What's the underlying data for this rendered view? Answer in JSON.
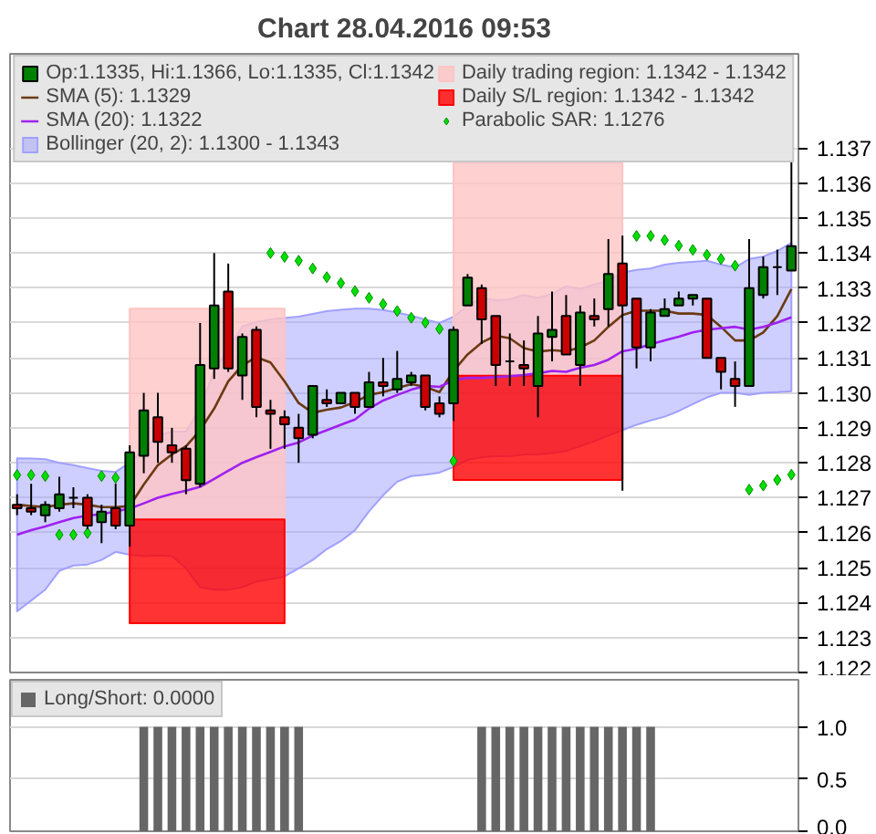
{
  "chart_data": [
    {
      "type": "candlestick",
      "title": "Chart 28.04.2016 09:53",
      "categories": [
        null,
        null,
        null,
        null,
        null,
        null,
        null,
        null,
        null,
        null,
        null,
        null,
        null,
        null,
        null,
        null,
        null,
        null,
        null,
        null,
        null,
        null,
        null,
        null,
        null,
        null,
        null,
        null,
        null,
        null,
        null,
        null,
        null,
        null,
        null,
        null,
        null,
        null,
        null,
        null,
        null,
        null,
        null,
        null,
        null,
        null,
        null,
        null,
        null,
        null,
        null,
        null,
        null,
        null,
        null,
        null
      ],
      "series": [
        {
          "type": "candlestick",
          "name": "Op:1.1335, Hi:1.1366, Lo:1.1335, Cl:1.1342",
          "color": "#008000",
          "ohlc": [
            [
              1.1268,
              1.1271,
              1.1265,
              1.1267
            ],
            [
              1.1267,
              1.1274,
              1.1265,
              1.1266
            ],
            [
              1.1265,
              1.1269,
              1.1263,
              1.1268
            ],
            [
              1.1267,
              1.1276,
              1.1266,
              1.1271
            ],
            [
              1.127,
              1.1273,
              1.1267,
              1.127
            ],
            [
              1.127,
              1.1271,
              1.1261,
              1.1262
            ],
            [
              1.1263,
              1.1268,
              1.1257,
              1.1266
            ],
            [
              1.1267,
              1.1274,
              1.1261,
              1.1262
            ],
            [
              1.1262,
              1.1285,
              1.1256,
              1.1283
            ],
            [
              1.1282,
              1.13,
              1.1277,
              1.1295
            ],
            [
              1.1293,
              1.13,
              1.128,
              1.1286
            ],
            [
              1.1285,
              1.129,
              1.128,
              1.1283
            ],
            [
              1.1284,
              1.1285,
              1.1271,
              1.1275
            ],
            [
              1.1274,
              1.132,
              1.1273,
              1.1308
            ],
            [
              1.1307,
              1.134,
              1.1304,
              1.1325
            ],
            [
              1.1329,
              1.1337,
              1.1306,
              1.1307
            ],
            [
              1.1305,
              1.1317,
              1.1298,
              1.1316
            ],
            [
              1.1318,
              1.1319,
              1.1293,
              1.1296
            ],
            [
              1.1295,
              1.1298,
              1.1284,
              1.1294
            ],
            [
              1.1293,
              1.1295,
              1.1284,
              1.1291
            ],
            [
              1.129,
              1.1294,
              1.128,
              1.1287
            ],
            [
              1.1288,
              1.1302,
              1.1287,
              1.1302
            ],
            [
              1.1298,
              1.1301,
              1.1296,
              1.1297
            ],
            [
              1.1297,
              1.13,
              1.1297,
              1.13
            ],
            [
              1.13,
              1.13,
              1.1294,
              1.1296
            ],
            [
              1.1296,
              1.1306,
              1.1296,
              1.1303
            ],
            [
              1.1303,
              1.131,
              1.1299,
              1.1302
            ],
            [
              1.1301,
              1.1312,
              1.13,
              1.1304
            ],
            [
              1.1303,
              1.1306,
              1.1302,
              1.1305
            ],
            [
              1.1305,
              1.1305,
              1.1295,
              1.1296
            ],
            [
              1.1297,
              1.1299,
              1.1293,
              1.1294
            ],
            [
              1.1297,
              1.1319,
              1.1292,
              1.1318
            ],
            [
              1.1325,
              1.1334,
              1.1325,
              1.1333
            ],
            [
              1.133,
              1.1331,
              1.1314,
              1.1321
            ],
            [
              1.1322,
              1.1322,
              1.1302,
              1.1308
            ],
            [
              1.1309,
              1.1317,
              1.1302,
              1.1309
            ],
            [
              1.1308,
              1.1315,
              1.1302,
              1.1307
            ],
            [
              1.1302,
              1.1322,
              1.1293,
              1.1317
            ],
            [
              1.1316,
              1.1329,
              1.1309,
              1.1318
            ],
            [
              1.1322,
              1.1328,
              1.1311,
              1.1311
            ],
            [
              1.1308,
              1.1325,
              1.1302,
              1.1323
            ],
            [
              1.1322,
              1.1327,
              1.1319,
              1.1321
            ],
            [
              1.1324,
              1.1344,
              1.1319,
              1.1334
            ],
            [
              1.1337,
              1.1345,
              1.1272,
              1.1325
            ],
            [
              1.1327,
              1.1327,
              1.1307,
              1.1313
            ],
            [
              1.1313,
              1.1324,
              1.1309,
              1.1323
            ],
            [
              1.1322,
              1.1327,
              1.1322,
              1.1324
            ],
            [
              1.1325,
              1.1329,
              1.1325,
              1.1327
            ],
            [
              1.1327,
              1.1328,
              1.1325,
              1.1328
            ],
            [
              1.1327,
              1.1327,
              1.131,
              1.131
            ],
            [
              1.131,
              1.131,
              1.1301,
              1.1306
            ],
            [
              1.1304,
              1.1309,
              1.1296,
              1.1302
            ],
            [
              1.1302,
              1.1344,
              1.1302,
              1.133
            ],
            [
              1.1328,
              1.1339,
              1.1327,
              1.1336
            ],
            [
              1.1336,
              1.1341,
              1.1328,
              1.1336
            ],
            [
              1.1335,
              1.1366,
              1.1335,
              1.1342
            ]
          ],
          "colors": [
            "#cc0000",
            "#cc0000",
            "#008000",
            "#008000",
            "#000000",
            "#cc0000",
            "#008000",
            "#cc0000",
            "#008000",
            "#008000",
            "#cc0000",
            "#cc0000",
            "#cc0000",
            "#008000",
            "#008000",
            "#cc0000",
            "#008000",
            "#cc0000",
            "#cc0000",
            "#cc0000",
            "#cc0000",
            "#008000",
            "#cc0000",
            "#008000",
            "#cc0000",
            "#008000",
            "#cc0000",
            "#008000",
            "#008000",
            "#cc0000",
            "#cc0000",
            "#008000",
            "#008000",
            "#cc0000",
            "#cc0000",
            "#000000",
            "#cc0000",
            "#008000",
            "#008000",
            "#cc0000",
            "#008000",
            "#cc0000",
            "#008000",
            "#cc0000",
            "#cc0000",
            "#008000",
            "#008000",
            "#008000",
            "#008000",
            "#cc0000",
            "#cc0000",
            "#cc0000",
            "#008000",
            "#008000",
            "#000000",
            "#008000"
          ]
        },
        {
          "type": "line",
          "name": "SMA (5): 1.1329",
          "color": "#6b3a12",
          "values": [
            1.1268,
            1.12676,
            1.12673,
            1.1268,
            1.12684,
            1.1268,
            1.12673,
            1.12673,
            1.12676,
            1.12738,
            1.12793,
            1.12824,
            1.12847,
            1.12893,
            1.12955,
            1.13033,
            1.13079,
            1.13102,
            1.13087,
            1.13033,
            1.12971,
            1.12943,
            1.12952,
            1.12958,
            1.12974,
            1.12994,
            1.13002,
            1.13014,
            1.13025,
            1.13017,
            1.13002,
            1.13063,
            1.1311,
            1.13144,
            1.13164,
            1.13156,
            1.13128,
            1.13118,
            1.13122,
            1.13119,
            1.1313,
            1.1315,
            1.13189,
            1.13223,
            1.13235,
            1.13235,
            1.13235,
            1.13227,
            1.13227,
            1.13223,
            1.13189,
            1.1315,
            1.1315,
            1.13173,
            1.1322,
            1.13297
          ]
        },
        {
          "type": "line",
          "name": "SMA (20): 1.1322",
          "color": "#a020f0",
          "values": [
            1.12594,
            1.12607,
            1.12618,
            1.1263,
            1.12642,
            1.12649,
            1.12653,
            1.12661,
            1.12669,
            1.12684,
            1.127,
            1.12711,
            1.1272,
            1.12731,
            1.12754,
            1.12777,
            1.128,
            1.12816,
            1.12831,
            1.12847,
            1.12858,
            1.12878,
            1.12893,
            1.12909,
            1.12924,
            1.12955,
            1.12978,
            1.12994,
            1.13009,
            1.1302,
            1.13017,
            1.13036,
            1.13043,
            1.13043,
            1.13045,
            1.13048,
            1.13051,
            1.13056,
            1.13063,
            1.1306,
            1.13072,
            1.1308,
            1.13095,
            1.13119,
            1.13126,
            1.13139,
            1.1315,
            1.13161,
            1.13173,
            1.13181,
            1.13185,
            1.13189,
            1.13181,
            1.13189,
            1.13201,
            1.13216
          ]
        },
        {
          "type": "line",
          "name": "Bollinger (20, 2): 1.1300 - 1.1343",
          "color": "#a0a0ff",
          "values": [
            null,
            null,
            null,
            null,
            null,
            null,
            null,
            null,
            null,
            null,
            null,
            null,
            null,
            null,
            null,
            null,
            null,
            null,
            null,
            null,
            null,
            null,
            null,
            null,
            null,
            null,
            null,
            null,
            null,
            null,
            null,
            null,
            null,
            null,
            null,
            null,
            null,
            null,
            null,
            null,
            null,
            null,
            null,
            null,
            null,
            null,
            null,
            null,
            null,
            null,
            null,
            null,
            null,
            null,
            null,
            null
          ],
          "upper": [
            1.12813,
            1.12812,
            1.1281,
            1.128,
            1.12793,
            1.12785,
            1.12777,
            1.12774,
            1.128,
            1.12839,
            1.12878,
            1.12889,
            1.1289,
            1.12955,
            1.13063,
            1.13125,
            1.1319,
            1.13203,
            1.1321,
            1.13214,
            1.13218,
            1.13226,
            1.13234,
            1.13238,
            1.13241,
            1.13241,
            1.13237,
            1.1323,
            1.13221,
            1.1321,
            1.132,
            1.13218,
            1.13249,
            1.13272,
            1.13265,
            1.13268,
            1.1328,
            1.13272,
            1.13283,
            1.13305,
            1.13297,
            1.1331,
            1.1332,
            1.13344,
            1.13352,
            1.13356,
            1.13367,
            1.13372,
            1.13375,
            1.13378,
            1.13367,
            1.13359,
            1.13383,
            1.1339,
            1.13406,
            1.13429
          ],
          "lower": [
            1.12375,
            1.12406,
            1.12437,
            1.12491,
            1.12506,
            1.12509,
            1.12522,
            1.12545,
            1.12537,
            1.12533,
            1.12535,
            1.12533,
            1.12498,
            1.12444,
            1.12437,
            1.12437,
            1.12444,
            1.1246,
            1.12467,
            1.12475,
            1.12498,
            1.12522,
            1.12553,
            1.12576,
            1.12607,
            1.12661,
            1.12707,
            1.12746,
            1.12762,
            1.12766,
            1.12772,
            1.12788,
            1.12808,
            1.12816,
            1.12819,
            1.12819,
            1.12824,
            1.12824,
            1.12828,
            1.12834,
            1.12847,
            1.12862,
            1.12878,
            1.12893,
            1.12909,
            1.12921,
            1.12932,
            1.12948,
            1.12968,
            1.12987,
            1.13,
            1.13,
            1.12994,
            1.13,
            1.13002,
            1.13005
          ]
        },
        {
          "type": "line",
          "name": "Daily trading region: 1.1342 - 1.1342",
          "color": "#ffc4c4",
          "values": [
            null,
            null,
            null,
            null,
            null,
            null,
            null,
            null,
            null,
            null,
            null,
            null,
            null,
            null,
            null,
            null,
            null,
            null,
            null,
            null,
            null,
            null,
            null,
            null,
            null,
            null,
            null,
            null,
            null,
            null,
            null,
            null,
            null,
            null,
            null,
            null,
            null,
            null,
            null,
            null,
            null,
            null,
            null,
            null,
            null,
            null,
            null,
            null,
            null,
            null,
            null,
            null,
            null,
            null,
            null,
            null
          ],
          "upper": [
            null,
            null,
            null,
            null,
            null,
            null,
            null,
            null,
            1.13241,
            1.13241,
            1.13241,
            1.13241,
            1.13241,
            1.13241,
            1.13241,
            1.13241,
            1.13241,
            1.13241,
            1.13241,
            1.13241,
            null,
            null,
            null,
            null,
            null,
            null,
            null,
            null,
            null,
            null,
            null,
            1.13659,
            1.13659,
            1.13659,
            1.13659,
            1.13659,
            1.13659,
            1.13659,
            1.13659,
            1.13659,
            1.13659,
            1.13659,
            1.13659,
            1.13659,
            null,
            null,
            null,
            null,
            null,
            null,
            null,
            null,
            null,
            null,
            null,
            null
          ],
          "lower": [
            null,
            null,
            null,
            null,
            null,
            null,
            null,
            null,
            1.12638,
            1.12638,
            1.12638,
            1.12638,
            1.12638,
            1.12638,
            1.12638,
            1.12638,
            1.12638,
            1.12638,
            1.12638,
            1.12638,
            null,
            null,
            null,
            null,
            null,
            null,
            null,
            null,
            null,
            null,
            null,
            1.13049,
            1.13049,
            1.13049,
            1.13049,
            1.13049,
            1.13049,
            1.13049,
            1.13049,
            1.13049,
            1.13049,
            1.13049,
            1.13049,
            1.13049,
            null,
            null,
            null,
            null,
            null,
            null,
            null,
            null,
            null,
            null,
            null,
            null
          ]
        },
        {
          "type": "line",
          "name": "Daily S/L region: 1.1342 - 1.1342",
          "color": "#ff0000",
          "values": [
            null,
            null,
            null,
            null,
            null,
            null,
            null,
            null,
            null,
            null,
            null,
            null,
            null,
            null,
            null,
            null,
            null,
            null,
            null,
            null,
            null,
            null,
            null,
            null,
            null,
            null,
            null,
            null,
            null,
            null,
            null,
            null,
            null,
            null,
            null,
            null,
            null,
            null,
            null,
            null,
            null,
            null,
            null,
            null,
            null,
            null,
            null,
            null,
            null,
            null,
            null,
            null,
            null,
            null,
            null,
            null
          ],
          "upper": [
            null,
            null,
            null,
            null,
            null,
            null,
            null,
            null,
            1.12638,
            1.12638,
            1.12638,
            1.12638,
            1.12638,
            1.12638,
            1.12638,
            1.12638,
            1.12638,
            1.12638,
            1.12638,
            1.12638,
            null,
            null,
            null,
            null,
            null,
            null,
            null,
            null,
            null,
            null,
            null,
            1.13049,
            1.13049,
            1.13049,
            1.13049,
            1.13049,
            1.13049,
            1.13049,
            1.13049,
            1.13049,
            1.13049,
            1.13049,
            1.13049,
            1.13049,
            null,
            null,
            null,
            null,
            null,
            null,
            null,
            null,
            null,
            null,
            null,
            null
          ],
          "lower": [
            null,
            null,
            null,
            null,
            null,
            null,
            null,
            null,
            1.12341,
            1.12341,
            1.12341,
            1.12341,
            1.12341,
            1.12341,
            1.12341,
            1.12341,
            1.12341,
            1.12341,
            1.12341,
            1.12341,
            null,
            null,
            null,
            null,
            null,
            null,
            null,
            null,
            null,
            null,
            null,
            1.12751,
            1.12751,
            1.12751,
            1.12751,
            1.12751,
            1.12751,
            1.12751,
            1.12751,
            1.12751,
            1.12751,
            1.12751,
            1.12751,
            1.12751,
            null,
            null,
            null,
            null,
            null,
            null,
            null,
            null,
            null,
            null,
            null,
            null
          ]
        },
        {
          "type": "scatter",
          "name": "Parabolic SAR: 1.1276",
          "color": "#00e000",
          "marker": "diamond",
          "values": [
            1.12765,
            1.12765,
            1.12762,
            1.12594,
            1.12594,
            1.12599,
            1.12762,
            1.12757,
            null,
            null,
            null,
            null,
            null,
            null,
            null,
            null,
            null,
            null,
            1.134,
            1.13389,
            1.13378,
            1.13356,
            1.13331,
            1.13314,
            1.13291,
            1.13272,
            1.13254,
            1.13234,
            1.13215,
            1.13201,
            1.13183,
            1.12805,
            null,
            null,
            null,
            null,
            null,
            null,
            null,
            null,
            null,
            null,
            null,
            null,
            1.13449,
            1.13449,
            1.13437,
            1.13421,
            1.13409,
            1.13395,
            1.13383,
            1.13364,
            1.12723,
            1.12735,
            1.12751,
            1.12766
          ]
        }
      ],
      "ylim": [
        1.122,
        1.1397
      ],
      "yticks": [
        1.122,
        1.123,
        1.124,
        1.125,
        1.126,
        1.127,
        1.128,
        1.129,
        {
          "value": 1.13,
          "label": "1.130"
        },
        1.131,
        1.132,
        1.133,
        1.134,
        1.135,
        1.136,
        1.137
      ],
      "grid": "y",
      "legend": "top",
      "tick_labels": "y"
    },
    {
      "type": "bar",
      "categories": [
        null,
        null,
        null,
        null,
        null,
        null,
        null,
        null,
        null,
        null,
        null,
        null,
        null,
        null,
        null,
        null,
        null,
        null,
        null,
        null,
        null,
        null,
        null,
        null,
        null,
        null,
        null,
        null,
        null,
        null,
        null,
        null,
        null,
        null,
        null,
        null,
        null,
        null,
        null,
        null,
        null,
        null,
        null,
        null,
        null,
        null,
        null,
        null,
        null,
        null,
        null,
        null,
        null,
        null,
        null,
        null
      ],
      "series": [
        {
          "name": "Long/Short: 0.0000",
          "color": "#666666",
          "values": [
            0,
            0,
            0,
            0,
            0,
            0,
            0,
            0,
            0,
            1,
            1,
            1,
            1,
            1,
            1,
            1,
            1,
            1,
            1,
            1,
            1,
            0,
            0,
            0,
            0,
            0,
            0,
            0,
            0,
            0,
            0,
            0,
            0,
            1,
            1,
            1,
            1,
            1,
            1,
            1,
            1,
            1,
            1,
            1,
            1,
            1,
            0,
            0,
            0,
            0,
            0,
            0,
            0,
            0,
            0,
            0
          ]
        }
      ],
      "ylim": [
        0,
        1.45
      ],
      "yticks": [
        {
          "value": 0,
          "label": "0.0"
        },
        0.5,
        {
          "value": 1,
          "label": "1.0"
        }
      ],
      "grid": "y",
      "legend": "top left",
      "tick_labels": "y"
    }
  ]
}
